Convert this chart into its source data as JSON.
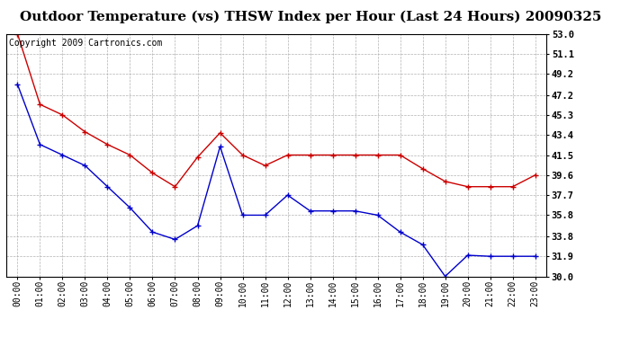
{
  "title": "Outdoor Temperature (vs) THSW Index per Hour (Last 24 Hours) 20090325",
  "copyright_text": "Copyright 2009 Cartronics.com",
  "x_labels": [
    "00:00",
    "01:00",
    "02:00",
    "03:00",
    "04:00",
    "05:00",
    "06:00",
    "07:00",
    "08:00",
    "09:00",
    "10:00",
    "11:00",
    "12:00",
    "13:00",
    "14:00",
    "15:00",
    "16:00",
    "17:00",
    "18:00",
    "19:00",
    "20:00",
    "21:00",
    "22:00",
    "23:00"
  ],
  "red_data": [
    53.0,
    46.3,
    45.3,
    43.7,
    42.5,
    41.5,
    39.8,
    38.5,
    41.3,
    43.6,
    41.5,
    40.5,
    41.5,
    41.5,
    41.5,
    41.5,
    41.5,
    41.5,
    40.2,
    39.0,
    38.5,
    38.5,
    38.5,
    39.6
  ],
  "blue_data": [
    48.2,
    42.5,
    41.5,
    40.5,
    38.5,
    36.5,
    34.2,
    33.5,
    34.8,
    42.3,
    35.8,
    35.8,
    37.7,
    36.2,
    36.2,
    36.2,
    35.8,
    34.2,
    33.0,
    30.0,
    32.0,
    31.9,
    31.9,
    31.9
  ],
  "ylim_min": 30.0,
  "ylim_max": 53.0,
  "yticks": [
    30.0,
    31.9,
    33.8,
    35.8,
    37.7,
    39.6,
    41.5,
    43.4,
    45.3,
    47.2,
    49.2,
    51.1,
    53.0
  ],
  "red_color": "#cc0000",
  "blue_color": "#0000cc",
  "bg_color": "#ffffff",
  "grid_color": "#aaaaaa",
  "title_fontsize": 11,
  "copyright_fontsize": 7
}
